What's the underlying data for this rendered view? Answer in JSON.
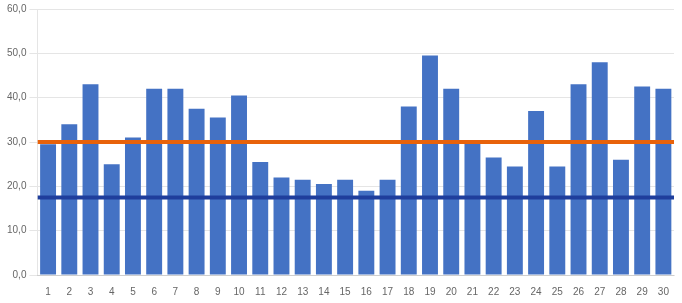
{
  "chart_data": {
    "type": "bar",
    "categories": [
      1,
      2,
      3,
      4,
      5,
      6,
      7,
      8,
      9,
      10,
      11,
      12,
      13,
      14,
      15,
      16,
      17,
      18,
      19,
      20,
      21,
      22,
      23,
      24,
      25,
      26,
      27,
      28,
      29,
      30
    ],
    "values": [
      29.5,
      34.0,
      43.0,
      25.0,
      31.0,
      42.0,
      42.0,
      37.5,
      35.5,
      40.5,
      25.5,
      22.0,
      21.5,
      20.5,
      21.5,
      19.0,
      21.5,
      38.0,
      49.5,
      42.0,
      30.0,
      26.5,
      24.5,
      37.0,
      24.5,
      43.0,
      48.0,
      26.0,
      42.5,
      42.0
    ],
    "color": "#4472C4",
    "hlines": [
      {
        "value": 30.0,
        "color": "#E8620A"
      },
      {
        "value": 17.5,
        "color": "#1F3E9C"
      }
    ],
    "ylim": [
      0,
      60
    ],
    "yticks": [
      {
        "value": 0,
        "label": "0,0"
      },
      {
        "value": 10,
        "label": "10,0"
      },
      {
        "value": 20,
        "label": "20,0"
      },
      {
        "value": 30,
        "label": "30,0"
      },
      {
        "value": 40,
        "label": "40,0"
      },
      {
        "value": 50,
        "label": "50,0"
      },
      {
        "value": 60,
        "label": "60,0"
      }
    ],
    "grid": true
  }
}
